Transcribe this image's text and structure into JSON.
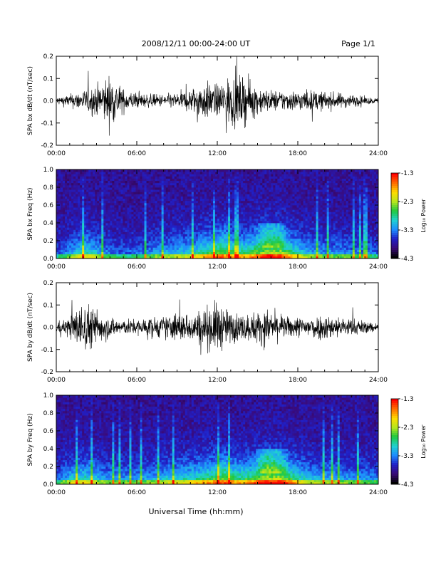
{
  "header": {
    "title": "2008/12/11   00:00-24:00 UT",
    "page": "Page 1/1"
  },
  "footer": {
    "xlabel": "Universal Time (hh:mm)"
  },
  "colorbar": {
    "label": "Log₁₀ Power",
    "ticks": [
      "-1.3",
      "-2.3",
      "-3.3",
      "-4.3"
    ],
    "colors": [
      "#000000",
      "#3a0a78",
      "#2020c8",
      "#1e8cff",
      "#20d2d2",
      "#20c840",
      "#b4e61e",
      "#ffdc00",
      "#ff6e00",
      "#ff0000"
    ]
  },
  "chart_data": [
    {
      "type": "line",
      "title": "",
      "xlabel": "",
      "ylabel": "SPA bx dB/dt (nT/sec)",
      "xlim": [
        0,
        24
      ],
      "ylim": [
        -0.2,
        0.2
      ],
      "x_ticks": [
        "00:00",
        "06:00",
        "12:00",
        "18:00",
        "24:00"
      ],
      "y_ticks": [
        "0.2",
        "0.1",
        "0.0",
        "-0.1",
        "-0.2"
      ],
      "series": [
        {
          "values": [
            0.03,
            0.05,
            0.08,
            0.12,
            0.2,
            0.09,
            0.06,
            0.05,
            0.05,
            0.06,
            0.09,
            0.15,
            0.12,
            0.2,
            0.18,
            0.11,
            0.08,
            0.08,
            0.08,
            0.08,
            0.07,
            0.06,
            0.05,
            0.03,
            0.02
          ],
          "note_x_unit": "hours"
        }
      ]
    },
    {
      "type": "heatmap",
      "title": "",
      "xlabel": "",
      "ylabel": "SPA bx Freq (Hz)",
      "xlim": [
        0,
        24
      ],
      "ylim": [
        0.0,
        1.0
      ],
      "x_ticks": [
        "00:00",
        "06:00",
        "12:00",
        "18:00",
        "24:00"
      ],
      "y_ticks": [
        "1.0",
        "0.8",
        "0.6",
        "0.4",
        "0.2",
        "0.0"
      ],
      "zlim": [
        -4.3,
        -1.3
      ],
      "zlabel": "Log₁₀ Power",
      "activity_by_hour": [
        0.15,
        0.3,
        0.5,
        0.35,
        0.2,
        0.2,
        0.2,
        0.3,
        0.35,
        0.4,
        0.45,
        0.6,
        0.65,
        0.55,
        0.6,
        0.75,
        0.75,
        0.5,
        0.35,
        0.3,
        0.3,
        0.25,
        0.25,
        0.2
      ]
    },
    {
      "type": "line",
      "title": "",
      "xlabel": "",
      "ylabel": "SPA by dB/dt (nT/sec)",
      "xlim": [
        0,
        24
      ],
      "ylim": [
        -0.2,
        0.2
      ],
      "x_ticks": [
        "00:00",
        "06:00",
        "12:00",
        "18:00",
        "24:00"
      ],
      "y_ticks": [
        "0.2",
        "0.1",
        "0.0",
        "-0.1",
        "-0.2"
      ],
      "series": [
        {
          "values": [
            0.04,
            0.08,
            0.2,
            0.14,
            0.08,
            0.06,
            0.06,
            0.08,
            0.08,
            0.12,
            0.1,
            0.15,
            0.2,
            0.12,
            0.1,
            0.13,
            0.13,
            0.08,
            0.08,
            0.09,
            0.1,
            0.08,
            0.07,
            0.05,
            0.03
          ]
        }
      ]
    },
    {
      "type": "heatmap",
      "title": "",
      "xlabel": "Universal Time (hh:mm)",
      "ylabel": "SPA by Freq (Hz)",
      "xlim": [
        0,
        24
      ],
      "ylim": [
        0.0,
        1.0
      ],
      "x_ticks": [
        "00:00",
        "06:00",
        "12:00",
        "18:00",
        "24:00"
      ],
      "y_ticks": [
        "1.0",
        "0.8",
        "0.6",
        "0.4",
        "0.2",
        "0.0"
      ],
      "zlim": [
        -4.3,
        -1.3
      ],
      "zlabel": "Log₁₀ Power",
      "activity_by_hour": [
        0.2,
        0.4,
        0.5,
        0.35,
        0.3,
        0.3,
        0.3,
        0.35,
        0.4,
        0.45,
        0.5,
        0.6,
        0.65,
        0.55,
        0.6,
        0.8,
        0.75,
        0.55,
        0.4,
        0.35,
        0.35,
        0.3,
        0.3,
        0.25
      ]
    }
  ]
}
